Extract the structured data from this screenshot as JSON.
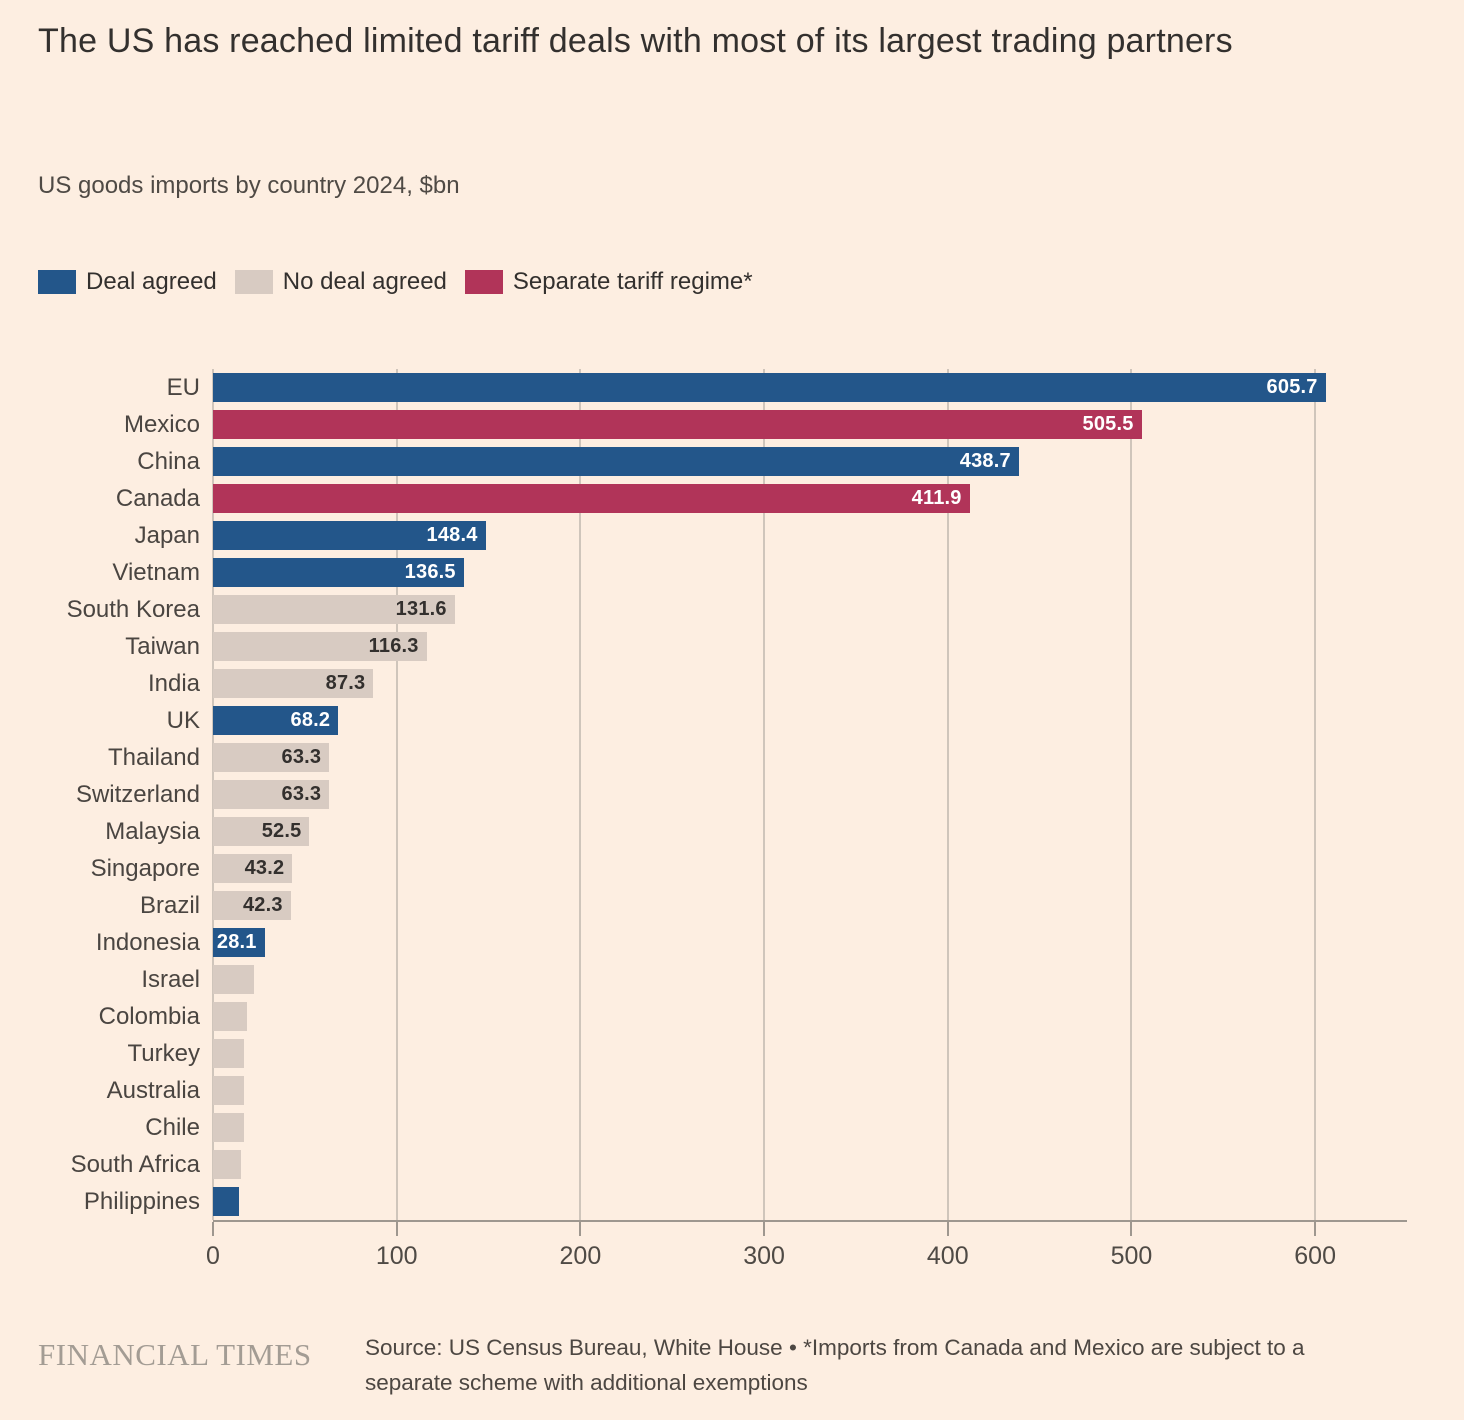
{
  "title": "The US has reached limited tariff deals with most of its largest trading partners",
  "subtitle": "US goods imports by country 2024, $bn",
  "colors": {
    "background": "#fdeee1",
    "deal": "#23568a",
    "no_deal": "#d8cbc2",
    "separate": "#b13459",
    "gridline": "#cfc5bb",
    "axis": "#9e978f",
    "title_text": "#33302e",
    "label_text": "#4a4541",
    "value_on_dark": "#ffffff",
    "value_on_light": "#33302e"
  },
  "legend": [
    {
      "label": "Deal agreed",
      "status": "deal",
      "color": "#23568a"
    },
    {
      "label": "No deal agreed",
      "status": "no_deal",
      "color": "#d8cbc2"
    },
    {
      "label": "Separate tariff regime*",
      "status": "separate",
      "color": "#b13459"
    }
  ],
  "chart_data": {
    "type": "bar",
    "orientation": "horizontal",
    "title": "The US has reached limited tariff deals with most of its largest trading partners",
    "subtitle": "US goods imports by country 2024, $bn",
    "xlabel": "",
    "ylabel": "",
    "unit": "$bn",
    "xlim": [
      0,
      650
    ],
    "xticks": [
      0,
      100,
      200,
      300,
      400,
      500,
      600
    ],
    "grid": true,
    "legend_position": "top",
    "categories": [
      "EU",
      "Mexico",
      "China",
      "Canada",
      "Japan",
      "Vietnam",
      "South Korea",
      "Taiwan",
      "India",
      "UK",
      "Thailand",
      "Switzerland",
      "Malaysia",
      "Singapore",
      "Brazil",
      "Indonesia",
      "Israel",
      "Colombia",
      "Turkey",
      "Australia",
      "Chile",
      "South Africa",
      "Philippines"
    ],
    "values": [
      605.7,
      505.5,
      438.7,
      411.9,
      148.4,
      136.5,
      131.6,
      116.3,
      87.3,
      68.2,
      63.3,
      63.3,
      52.5,
      43.2,
      42.3,
      28.1,
      22.2,
      18.5,
      17.1,
      17.0,
      16.9,
      15.0,
      14.2
    ],
    "bars": [
      {
        "country": "EU",
        "value": 605.7,
        "status": "deal",
        "value_label": "605.7"
      },
      {
        "country": "Mexico",
        "value": 505.5,
        "status": "separate",
        "value_label": "505.5"
      },
      {
        "country": "China",
        "value": 438.7,
        "status": "deal",
        "value_label": "438.7"
      },
      {
        "country": "Canada",
        "value": 411.9,
        "status": "separate",
        "value_label": "411.9"
      },
      {
        "country": "Japan",
        "value": 148.4,
        "status": "deal",
        "value_label": "148.4"
      },
      {
        "country": "Vietnam",
        "value": 136.5,
        "status": "deal",
        "value_label": "136.5"
      },
      {
        "country": "South Korea",
        "value": 131.6,
        "status": "no_deal",
        "value_label": "131.6"
      },
      {
        "country": "Taiwan",
        "value": 116.3,
        "status": "no_deal",
        "value_label": "116.3"
      },
      {
        "country": "India",
        "value": 87.3,
        "status": "no_deal",
        "value_label": "87.3"
      },
      {
        "country": "UK",
        "value": 68.2,
        "status": "deal",
        "value_label": "68.2"
      },
      {
        "country": "Thailand",
        "value": 63.3,
        "status": "no_deal",
        "value_label": "63.3"
      },
      {
        "country": "Switzerland",
        "value": 63.3,
        "status": "no_deal",
        "value_label": "63.3"
      },
      {
        "country": "Malaysia",
        "value": 52.5,
        "status": "no_deal",
        "value_label": "52.5"
      },
      {
        "country": "Singapore",
        "value": 43.2,
        "status": "no_deal",
        "value_label": "43.2"
      },
      {
        "country": "Brazil",
        "value": 42.3,
        "status": "no_deal",
        "value_label": "42.3"
      },
      {
        "country": "Indonesia",
        "value": 28.1,
        "status": "deal",
        "value_label": "28.1"
      },
      {
        "country": "Israel",
        "value": 22.2,
        "status": "no_deal",
        "value_label": ""
      },
      {
        "country": "Colombia",
        "value": 18.5,
        "status": "no_deal",
        "value_label": ""
      },
      {
        "country": "Turkey",
        "value": 17.1,
        "status": "no_deal",
        "value_label": ""
      },
      {
        "country": "Australia",
        "value": 17.0,
        "status": "no_deal",
        "value_label": ""
      },
      {
        "country": "Chile",
        "value": 16.9,
        "status": "no_deal",
        "value_label": ""
      },
      {
        "country": "South Africa",
        "value": 15.0,
        "status": "no_deal",
        "value_label": ""
      },
      {
        "country": "Philippines",
        "value": 14.2,
        "status": "deal",
        "value_label": ""
      }
    ]
  },
  "footer": {
    "brand": "FINANCIAL TIMES",
    "source": "Source: US Census Bureau, White House • *Imports from Canada and Mexico are subject to a separate scheme with additional exemptions"
  }
}
